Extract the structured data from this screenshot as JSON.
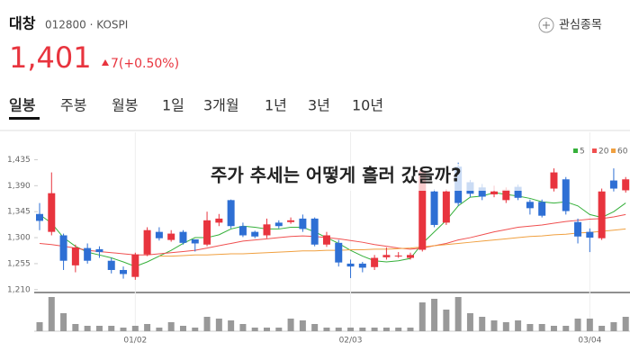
{
  "header": {
    "name": "대창",
    "code_line": "012800 · KOSPI",
    "watch_button": "관심종목",
    "price": "1,401",
    "change": "7(+0.50%)"
  },
  "tabs": [
    "일봉",
    "주봉",
    "월봉",
    "1일",
    "3개월",
    "1년",
    "3년",
    "10년"
  ],
  "chart_data": {
    "type": "candlestick",
    "annotation": "주가 추세는 어떻게 흘러 갔을까?",
    "categories": [
      null,
      null,
      null,
      null,
      null,
      null,
      null,
      null,
      "01/02",
      null,
      null,
      null,
      null,
      null,
      null,
      null,
      null,
      null,
      null,
      null,
      null,
      null,
      null,
      null,
      null,
      null,
      "02/03",
      null,
      null,
      null,
      null,
      null,
      null,
      null,
      null,
      null,
      null,
      null,
      null,
      null,
      null,
      null,
      null,
      null,
      null,
      null,
      "03/04",
      null,
      null,
      null
    ],
    "open": [
      1341,
      1310,
      1304,
      1252,
      1282,
      1280,
      1260,
      1244,
      1232,
      1271,
      1310,
      1296,
      1310,
      1297,
      1288,
      1326,
      1365,
      1320,
      1310,
      1304,
      1326,
      1327,
      1333,
      1333,
      1288,
      1291,
      1255,
      1255,
      1249,
      1266,
      1268,
      1265,
      1279,
      1380,
      1326,
      1423,
      1396,
      1387,
      1375,
      1365,
      1388,
      1362,
      1362,
      1385,
      1401,
      1327,
      1310,
      1299,
      1399,
      1382
    ],
    "high": [
      1360,
      1413,
      1307,
      1288,
      1290,
      1285,
      1265,
      1250,
      1274,
      1318,
      1318,
      1313,
      1313,
      1297,
      1345,
      1341,
      1366,
      1326,
      1312,
      1333,
      1330,
      1335,
      1340,
      1335,
      1310,
      1296,
      1262,
      1258,
      1270,
      1283,
      1275,
      1274,
      1420,
      1384,
      1384,
      1430,
      1400,
      1393,
      1390,
      1387,
      1392,
      1366,
      1366,
      1420,
      1405,
      1333,
      1316,
      1385,
      1420,
      1405
    ],
    "low": [
      1313,
      1304,
      1244,
      1240,
      1255,
      1265,
      1238,
      1229,
      1227,
      1268,
      1295,
      1293,
      1288,
      1276,
      1285,
      1320,
      1316,
      1301,
      1299,
      1299,
      1316,
      1324,
      1310,
      1285,
      1284,
      1250,
      1230,
      1240,
      1244,
      1262,
      1265,
      1262,
      1276,
      1318,
      1322,
      1355,
      1370,
      1365,
      1370,
      1360,
      1365,
      1340,
      1335,
      1380,
      1340,
      1290,
      1275,
      1296,
      1380,
      1378
    ],
    "close": [
      1329,
      1377,
      1260,
      1283,
      1260,
      1275,
      1244,
      1237,
      1271,
      1313,
      1299,
      1307,
      1291,
      1290,
      1330,
      1333,
      1320,
      1304,
      1302,
      1323,
      1320,
      1330,
      1315,
      1288,
      1304,
      1257,
      1250,
      1248,
      1265,
      1270,
      1269,
      1270,
      1416,
      1322,
      1380,
      1360,
      1376,
      1371,
      1380,
      1383,
      1369,
      1351,
      1338,
      1413,
      1346,
      1302,
      1300,
      1380,
      1385,
      1401
    ],
    "up_color": "#e8343e",
    "down_color": "#2e6fd4",
    "volume": [
      10,
      38,
      20,
      8,
      6,
      6,
      6,
      4,
      6,
      8,
      4,
      10,
      6,
      4,
      16,
      14,
      12,
      8,
      4,
      4,
      4,
      14,
      12,
      8,
      4,
      4,
      4,
      4,
      4,
      4,
      4,
      4,
      32,
      36,
      24,
      38,
      20,
      16,
      12,
      10,
      12,
      8,
      8,
      6,
      6,
      14,
      14,
      6,
      10,
      16
    ],
    "volume_color": "#999999",
    "series": [
      {
        "name": "5",
        "color": "#35b03a",
        "values": [
          1340,
          1325,
          1300,
          1285,
          1275,
          1270,
          1265,
          1258,
          1250,
          1258,
          1268,
          1278,
          1290,
          1300,
          1300,
          1305,
          1315,
          1320,
          1318,
          1315,
          1315,
          1318,
          1318,
          1310,
          1300,
          1290,
          1278,
          1268,
          1260,
          1258,
          1260,
          1264,
          1290,
          1310,
          1330,
          1355,
          1370,
          1372,
          1378,
          1375,
          1372,
          1368,
          1362,
          1360,
          1362,
          1355,
          1340,
          1335,
          1345,
          1360
        ]
      },
      {
        "name": "20",
        "color": "#f05050",
        "values": [
          1290,
          1288,
          1285,
          1282,
          1278,
          1276,
          1274,
          1272,
          1270,
          1270,
          1272,
          1274,
          1276,
          1278,
          1282,
          1286,
          1290,
          1294,
          1296,
          1298,
          1300,
          1302,
          1303,
          1302,
          1300,
          1298,
          1295,
          1292,
          1288,
          1285,
          1282,
          1280,
          1282,
          1286,
          1290,
          1296,
          1300,
          1305,
          1310,
          1314,
          1318,
          1320,
          1322,
          1325,
          1328,
          1330,
          1332,
          1333,
          1336,
          1340
        ]
      },
      {
        "name": "60",
        "color": "#f0a040",
        "values": [
          null,
          null,
          null,
          null,
          null,
          null,
          null,
          null,
          null,
          null,
          1268,
          1268,
          1269,
          1270,
          1270,
          1271,
          1272,
          1272,
          1273,
          1274,
          1275,
          1276,
          1277,
          1277,
          1278,
          1278,
          1279,
          1279,
          1280,
          1280,
          1281,
          1282,
          1284,
          1286,
          1288,
          1290,
          1292,
          1294,
          1296,
          1298,
          1300,
          1302,
          1303,
          1305,
          1306,
          1308,
          1309,
          1311,
          1313,
          1315
        ]
      }
    ],
    "ylim": [
      1205,
      1470
    ],
    "yticks": [
      {
        "value": 1435,
        "label": "1,435"
      },
      {
        "value": 1390,
        "label": "1,390"
      },
      {
        "value": 1345,
        "label": "1,345"
      },
      {
        "value": 1300,
        "label": "1,300"
      },
      {
        "value": 1255,
        "label": "1,255"
      },
      {
        "value": 1210,
        "label": "1,210"
      }
    ]
  }
}
